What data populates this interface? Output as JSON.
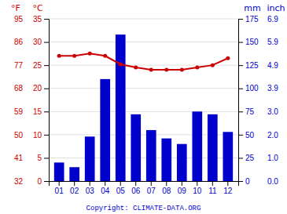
{
  "chart_data": {
    "type": "bar",
    "categories": [
      "01",
      "02",
      "03",
      "04",
      "05",
      "06",
      "07",
      "08",
      "09",
      "10",
      "11",
      "12"
    ],
    "series": [
      {
        "type": "bar",
        "axis": "y2",
        "color": "#0000cc",
        "values": [
          20,
          15,
          48,
          110,
          158,
          72,
          55,
          46,
          40,
          75,
          72,
          53
        ]
      },
      {
        "type": "line",
        "color": "#cc0000",
        "marker": "circle",
        "values": [
          27.0,
          27.0,
          27.5,
          27.0,
          25.2,
          24.5,
          24.0,
          24.0,
          24.0,
          24.5,
          25.0,
          26.5
        ]
      }
    ],
    "y_label": "°C",
    "ylim": [
      0,
      35
    ],
    "yticks": [
      0,
      5,
      10,
      15,
      20,
      25,
      30,
      35
    ],
    "y_alt_label": "°F",
    "y_alt_ticks": [
      {
        "value": 0,
        "label": "32"
      },
      {
        "value": 5,
        "label": "41"
      },
      {
        "value": 10,
        "label": "50"
      },
      {
        "value": 15,
        "label": "59"
      },
      {
        "value": 20,
        "label": "68"
      },
      {
        "value": 25,
        "label": "77"
      },
      {
        "value": 30,
        "label": "86"
      },
      {
        "value": 35,
        "label": "95"
      }
    ],
    "y2_label": "mm",
    "y2lim": [
      0,
      175
    ],
    "y2ticks": [
      0,
      25,
      50,
      75,
      100,
      125,
      150,
      175
    ],
    "y2_alt_label": "inch",
    "y2_alt_ticks": [
      {
        "value": 0,
        "label": "0.0"
      },
      {
        "value": 25,
        "label": "1.0"
      },
      {
        "value": 50,
        "label": "2.0"
      },
      {
        "value": 75,
        "label": "3.0"
      },
      {
        "value": 100,
        "label": "3.9"
      },
      {
        "value": 125,
        "label": "4.9"
      },
      {
        "value": 150,
        "label": "5.9"
      },
      {
        "value": 175,
        "label": "6.9"
      }
    ],
    "annotations": [
      "Copyright: CLIMATE-DATA.ORG"
    ],
    "grid": true
  }
}
